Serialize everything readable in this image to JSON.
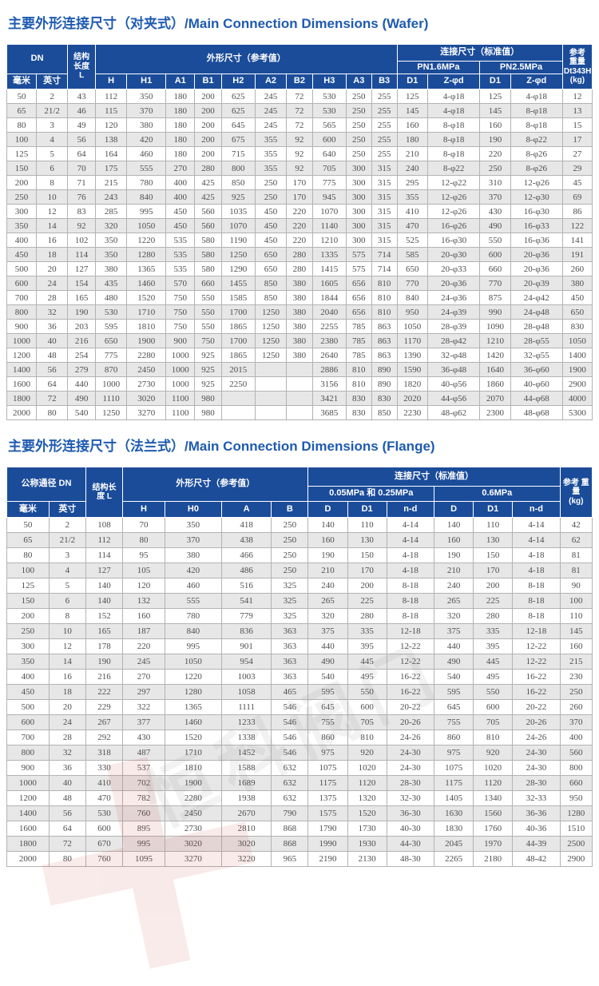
{
  "colors": {
    "header_bg": "#1b4c9a",
    "title_color": "#1f5bb0",
    "row_alt": "#e7e7e7",
    "grid": "#b3b3b3",
    "cell_text": "#4e4e4e"
  },
  "watermark": {
    "text": "恒科阀门"
  },
  "wafer_section": {
    "title": "主要外形连接尺寸（对夹式）/Main Connection Dimensions (Wafer)"
  },
  "wafer_table": {
    "header": {
      "dn": "DN",
      "length": "结构\n长度\nL",
      "dims": "外形尺寸（参考值）",
      "conn": "连接尺寸（标准值）",
      "pn16": "PN1.6MPa",
      "pn25": "PN2.5MPa",
      "weight": "参考\n重量\nDt343H\n(kg)",
      "mm": "毫米",
      "inch": "英寸",
      "c1": "H",
      "c2": "H1",
      "c3": "A1",
      "c4": "B1",
      "c5": "H2",
      "c6": "A2",
      "c7": "B2",
      "c8": "H3",
      "c9": "A3",
      "c10": "B3",
      "d1": "D1",
      "z": "Z-φd"
    },
    "rows": [
      [
        "50",
        "2",
        "43",
        "112",
        "350",
        "180",
        "200",
        "625",
        "245",
        "72",
        "530",
        "250",
        "255",
        "125",
        "4-φ18",
        "125",
        "4-φ18",
        "12"
      ],
      [
        "65",
        "21/2",
        "46",
        "115",
        "370",
        "180",
        "200",
        "625",
        "245",
        "72",
        "530",
        "250",
        "255",
        "145",
        "4-φ18",
        "145",
        "8-φ18",
        "13"
      ],
      [
        "80",
        "3",
        "49",
        "120",
        "380",
        "180",
        "200",
        "645",
        "245",
        "72",
        "565",
        "250",
        "255",
        "160",
        "8-φ18",
        "160",
        "8-φ18",
        "15"
      ],
      [
        "100",
        "4",
        "56",
        "138",
        "420",
        "180",
        "200",
        "675",
        "355",
        "92",
        "600",
        "250",
        "255",
        "180",
        "8-φ18",
        "190",
        "8-φ22",
        "17"
      ],
      [
        "125",
        "5",
        "64",
        "164",
        "460",
        "180",
        "200",
        "715",
        "355",
        "92",
        "640",
        "250",
        "255",
        "210",
        "8-φ18",
        "220",
        "8-φ26",
        "27"
      ],
      [
        "150",
        "6",
        "70",
        "175",
        "555",
        "270",
        "280",
        "800",
        "355",
        "92",
        "705",
        "300",
        "315",
        "240",
        "8-φ22",
        "250",
        "8-φ26",
        "29"
      ],
      [
        "200",
        "8",
        "71",
        "215",
        "780",
        "400",
        "425",
        "850",
        "250",
        "170",
        "775",
        "300",
        "315",
        "295",
        "12-φ22",
        "310",
        "12-φ26",
        "45"
      ],
      [
        "250",
        "10",
        "76",
        "243",
        "840",
        "400",
        "425",
        "925",
        "250",
        "170",
        "945",
        "300",
        "315",
        "355",
        "12-φ26",
        "370",
        "12-φ30",
        "69"
      ],
      [
        "300",
        "12",
        "83",
        "285",
        "995",
        "450",
        "560",
        "1035",
        "450",
        "220",
        "1070",
        "300",
        "315",
        "410",
        "12-φ26",
        "430",
        "16-φ30",
        "86"
      ],
      [
        "350",
        "14",
        "92",
        "320",
        "1050",
        "450",
        "560",
        "1070",
        "450",
        "220",
        "1140",
        "300",
        "315",
        "470",
        "16-φ26",
        "490",
        "16-φ33",
        "122"
      ],
      [
        "400",
        "16",
        "102",
        "350",
        "1220",
        "535",
        "580",
        "1190",
        "450",
        "220",
        "1210",
        "300",
        "315",
        "525",
        "16-φ30",
        "550",
        "16-φ36",
        "141"
      ],
      [
        "450",
        "18",
        "114",
        "350",
        "1280",
        "535",
        "580",
        "1250",
        "650",
        "280",
        "1335",
        "575",
        "714",
        "585",
        "20-φ30",
        "600",
        "20-φ36",
        "191"
      ],
      [
        "500",
        "20",
        "127",
        "380",
        "1365",
        "535",
        "580",
        "1290",
        "650",
        "280",
        "1415",
        "575",
        "714",
        "650",
        "20-φ33",
        "660",
        "20-φ36",
        "260"
      ],
      [
        "600",
        "24",
        "154",
        "435",
        "1460",
        "570",
        "660",
        "1455",
        "850",
        "380",
        "1605",
        "656",
        "810",
        "770",
        "20-φ36",
        "770",
        "20-φ39",
        "380"
      ],
      [
        "700",
        "28",
        "165",
        "480",
        "1520",
        "750",
        "550",
        "1585",
        "850",
        "380",
        "1844",
        "656",
        "810",
        "840",
        "24-φ36",
        "875",
        "24-φ42",
        "450"
      ],
      [
        "800",
        "32",
        "190",
        "530",
        "1710",
        "750",
        "550",
        "1700",
        "1250",
        "380",
        "2040",
        "656",
        "810",
        "950",
        "24-φ39",
        "990",
        "24-φ48",
        "650"
      ],
      [
        "900",
        "36",
        "203",
        "595",
        "1810",
        "750",
        "550",
        "1865",
        "1250",
        "380",
        "2255",
        "785",
        "863",
        "1050",
        "28-φ39",
        "1090",
        "28-φ48",
        "830"
      ],
      [
        "1000",
        "40",
        "216",
        "650",
        "1900",
        "900",
        "750",
        "1700",
        "1250",
        "380",
        "2380",
        "785",
        "863",
        "1170",
        "28-φ42",
        "1210",
        "28-φ55",
        "1050"
      ],
      [
        "1200",
        "48",
        "254",
        "775",
        "2280",
        "1000",
        "925",
        "1865",
        "1250",
        "380",
        "2640",
        "785",
        "863",
        "1390",
        "32-φ48",
        "1420",
        "32-φ55",
        "1400"
      ],
      [
        "1400",
        "56",
        "279",
        "870",
        "2450",
        "1000",
        "925",
        "2015",
        "",
        "",
        "2886",
        "810",
        "890",
        "1590",
        "36-φ48",
        "1640",
        "36-φ60",
        "1900"
      ],
      [
        "1600",
        "64",
        "440",
        "1000",
        "2730",
        "1000",
        "925",
        "2250",
        "",
        "",
        "3156",
        "810",
        "890",
        "1820",
        "40-φ56",
        "1860",
        "40-φ60",
        "2900"
      ],
      [
        "1800",
        "72",
        "490",
        "1110",
        "3020",
        "1100",
        "980",
        "",
        "",
        "",
        "3421",
        "830",
        "830",
        "2020",
        "44-φ56",
        "2070",
        "44-φ68",
        "4000"
      ],
      [
        "2000",
        "80",
        "540",
        "1250",
        "3270",
        "1100",
        "980",
        "",
        "",
        "",
        "3685",
        "830",
        "850",
        "2230",
        "48-φ62",
        "2300",
        "48-φ68",
        "5300"
      ]
    ]
  },
  "flange_section": {
    "title": "主要外形连接尺寸（法兰式）/Main Connection Dimensions (Flange)"
  },
  "flange_table": {
    "header": {
      "dn": "公称通径 DN",
      "length": "结构长\n度 L",
      "dims": "外形尺寸（参考值）",
      "conn": "连接尺寸（标准值）",
      "low": "0.05MPa 和 0.25MPa",
      "high": "0.6MPa",
      "weight": "参考 重量\n(kg)",
      "mm": "毫米",
      "inch": "英寸",
      "c1": "H",
      "c2": "H0",
      "c3": "A",
      "c4": "B",
      "d": "D",
      "d1": "D1",
      "nd": "n-d"
    },
    "rows": [
      [
        "50",
        "2",
        "108",
        "70",
        "350",
        "418",
        "250",
        "140",
        "110",
        "4-14",
        "140",
        "110",
        "4-14",
        "42"
      ],
      [
        "65",
        "21/2",
        "112",
        "80",
        "370",
        "438",
        "250",
        "160",
        "130",
        "4-14",
        "160",
        "130",
        "4-14",
        "62"
      ],
      [
        "80",
        "3",
        "114",
        "95",
        "380",
        "466",
        "250",
        "190",
        "150",
        "4-18",
        "190",
        "150",
        "4-18",
        "81"
      ],
      [
        "100",
        "4",
        "127",
        "105",
        "420",
        "486",
        "250",
        "210",
        "170",
        "4-18",
        "210",
        "170",
        "4-18",
        "81"
      ],
      [
        "125",
        "5",
        "140",
        "120",
        "460",
        "516",
        "325",
        "240",
        "200",
        "8-18",
        "240",
        "200",
        "8-18",
        "90"
      ],
      [
        "150",
        "6",
        "140",
        "132",
        "555",
        "541",
        "325",
        "265",
        "225",
        "8-18",
        "265",
        "225",
        "8-18",
        "100"
      ],
      [
        "200",
        "8",
        "152",
        "160",
        "780",
        "779",
        "325",
        "320",
        "280",
        "8-18",
        "320",
        "280",
        "8-18",
        "110"
      ],
      [
        "250",
        "10",
        "165",
        "187",
        "840",
        "836",
        "363",
        "375",
        "335",
        "12-18",
        "375",
        "335",
        "12-18",
        "145"
      ],
      [
        "300",
        "12",
        "178",
        "220",
        "995",
        "901",
        "363",
        "440",
        "395",
        "12-22",
        "440",
        "395",
        "12-22",
        "160"
      ],
      [
        "350",
        "14",
        "190",
        "245",
        "1050",
        "954",
        "363",
        "490",
        "445",
        "12-22",
        "490",
        "445",
        "12-22",
        "215"
      ],
      [
        "400",
        "16",
        "216",
        "270",
        "1220",
        "1003",
        "363",
        "540",
        "495",
        "16-22",
        "540",
        "495",
        "16-22",
        "230"
      ],
      [
        "450",
        "18",
        "222",
        "297",
        "1280",
        "1058",
        "465",
        "595",
        "550",
        "16-22",
        "595",
        "550",
        "16-22",
        "250"
      ],
      [
        "500",
        "20",
        "229",
        "322",
        "1365",
        "1111",
        "546",
        "645",
        "600",
        "20-22",
        "645",
        "600",
        "20-22",
        "260"
      ],
      [
        "600",
        "24",
        "267",
        "377",
        "1460",
        "1233",
        "546",
        "755",
        "705",
        "20-26",
        "755",
        "705",
        "20-26",
        "370"
      ],
      [
        "700",
        "28",
        "292",
        "430",
        "1520",
        "1338",
        "546",
        "860",
        "810",
        "24-26",
        "860",
        "810",
        "24-26",
        "400"
      ],
      [
        "800",
        "32",
        "318",
        "487",
        "1710",
        "1452",
        "546",
        "975",
        "920",
        "24-30",
        "975",
        "920",
        "24-30",
        "560"
      ],
      [
        "900",
        "36",
        "330",
        "537",
        "1810",
        "1588",
        "632",
        "1075",
        "1020",
        "24-30",
        "1075",
        "1020",
        "24-30",
        "800"
      ],
      [
        "1000",
        "40",
        "410",
        "702",
        "1900",
        "1689",
        "632",
        "1175",
        "1120",
        "28-30",
        "1175",
        "1120",
        "28-30",
        "660"
      ],
      [
        "1200",
        "48",
        "470",
        "782",
        "2280",
        "1938",
        "632",
        "1375",
        "1320",
        "32-30",
        "1405",
        "1340",
        "32-33",
        "950"
      ],
      [
        "1400",
        "56",
        "530",
        "760",
        "2450",
        "2670",
        "790",
        "1575",
        "1520",
        "36-30",
        "1630",
        "1560",
        "36-36",
        "1280"
      ],
      [
        "1600",
        "64",
        "600",
        "895",
        "2730",
        "2810",
        "868",
        "1790",
        "1730",
        "40-30",
        "1830",
        "1760",
        "40-36",
        "1510"
      ],
      [
        "1800",
        "72",
        "670",
        "995",
        "3020",
        "3020",
        "868",
        "1990",
        "1930",
        "44-30",
        "2045",
        "1970",
        "44-39",
        "2500"
      ],
      [
        "2000",
        "80",
        "760",
        "1095",
        "3270",
        "3220",
        "965",
        "2190",
        "2130",
        "48-30",
        "2265",
        "2180",
        "48-42",
        "2900"
      ]
    ]
  }
}
